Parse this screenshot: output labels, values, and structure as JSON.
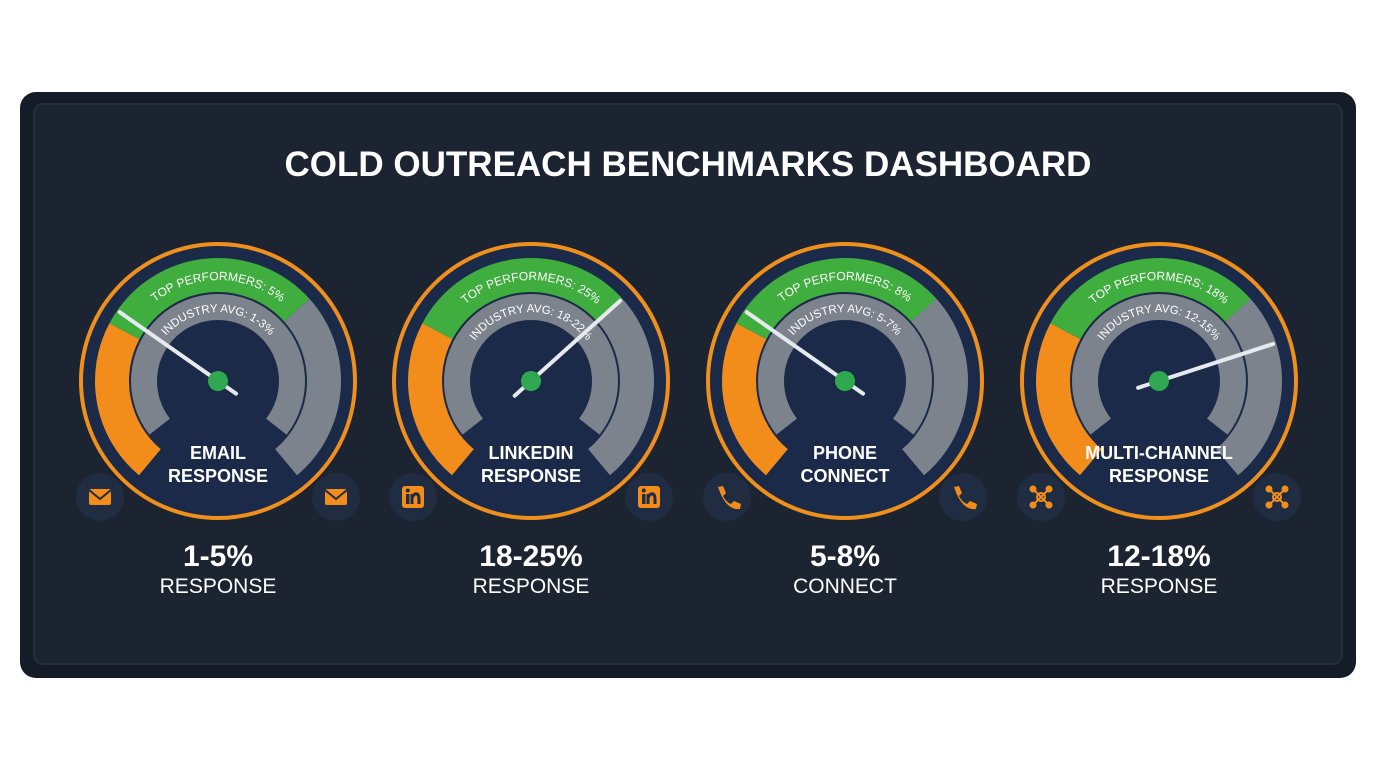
{
  "title": "COLD OUTREACH BENCHMARKS DASHBOARD",
  "gauges": [
    {
      "top_label": "TOP PERFORMERS: 5%",
      "avg_label": "INDUSTRY AVG: 1-3%",
      "name": [
        "EMAIL",
        "RESPONSE"
      ],
      "value": "1-5%",
      "unit": "RESPONSE"
    },
    {
      "top_label": "TOP PERFORMERS: 25%",
      "avg_label": "INDUSTRY AVG: 18-22%",
      "name": [
        "LINKEDIN",
        "RESPONSE"
      ],
      "value": "18-25%",
      "unit": "RESPONSE"
    },
    {
      "top_label": "TOP PERFORMERS: 8%",
      "avg_label": "INDUSTRY AVG: 5-7%",
      "name": [
        "PHONE",
        "CONNECT"
      ],
      "value": "5-8%",
      "unit": "CONNECT"
    },
    {
      "top_label": "TOP PERFORMERS: 18%",
      "avg_label": "INDUSTRY AVG: 12-15%",
      "name": [
        "MULTI-CHANNEL",
        "RESPONSE"
      ],
      "value": "12-18%",
      "unit": "RESPONSE"
    }
  ]
}
